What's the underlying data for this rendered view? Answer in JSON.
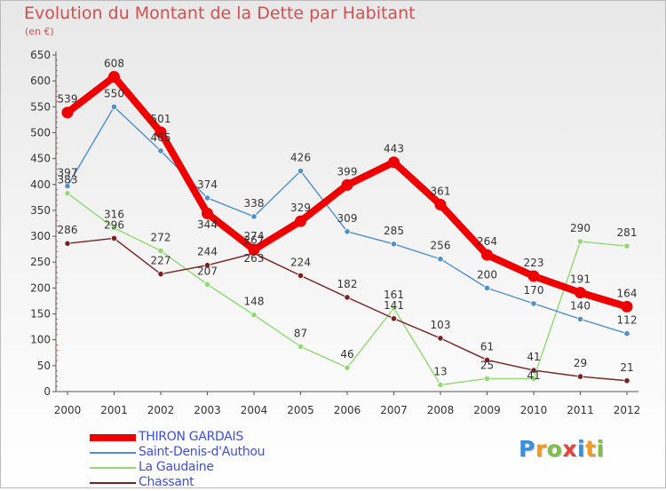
{
  "title": "Evolution du Montant de la Dette par Habitant",
  "subtitle": "(en €)",
  "logo": {
    "text": "Proxiti",
    "colors": [
      "#3a8fd8",
      "#f29b1d",
      "#7dc142",
      "#e4423f",
      "#3a8fd8",
      "#f29b1d",
      "#7dc142"
    ]
  },
  "chart_data": {
    "type": "line",
    "x": [
      "2000",
      "2001",
      "2002",
      "2003",
      "2004",
      "2005",
      "2006",
      "2007",
      "2008",
      "2009",
      "2010",
      "2011",
      "2012"
    ],
    "yticks": [
      0,
      50,
      100,
      150,
      200,
      250,
      300,
      350,
      400,
      450,
      500,
      550,
      600,
      650
    ],
    "ylim": [
      0,
      650
    ],
    "grid": false,
    "legend_position": "bottom-left",
    "series": [
      {
        "name": "THIRON GARDAIS",
        "color": "#ee0000",
        "values": [
          539,
          608,
          501,
          344,
          274,
          329,
          399,
          443,
          361,
          264,
          223,
          191,
          164
        ],
        "labels": [
          "539",
          "608",
          "501",
          "",
          "274",
          "329",
          "399",
          "443",
          "361",
          "264",
          "223",
          "191",
          "164"
        ]
      },
      {
        "name": "Saint-Denis-d'Authou",
        "color": "#4f8fcb",
        "values": [
          397,
          550,
          465,
          374,
          338,
          426,
          309,
          285,
          256,
          200,
          170,
          140,
          112
        ],
        "labels": [
          "397",
          "550",
          "465",
          "374",
          "338",
          "426",
          "309",
          "285",
          "256",
          "200",
          "170",
          "140",
          "112"
        ]
      },
      {
        "name": "La Gaudaine",
        "color": "#90d970",
        "values": [
          383,
          316,
          272,
          207,
          148,
          87,
          46,
          161,
          13,
          25,
          25,
          290,
          281
        ],
        "labels": [
          "383",
          "316",
          "272",
          "207",
          "148",
          "87",
          "46",
          "161",
          "13",
          "25",
          "",
          "290",
          "281"
        ]
      },
      {
        "name": "Chassant",
        "color": "#7a2020",
        "values": [
          286,
          296,
          227,
          244,
          267,
          224,
          182,
          141,
          103,
          61,
          41,
          29,
          21
        ],
        "labels": [
          "286",
          "296",
          "227",
          "244",
          "267",
          "224",
          "182",
          "141",
          "103",
          "61",
          "41",
          "29",
          "21"
        ]
      }
    ],
    "overlap_labels": [
      "344",
      "263",
      "41"
    ]
  }
}
